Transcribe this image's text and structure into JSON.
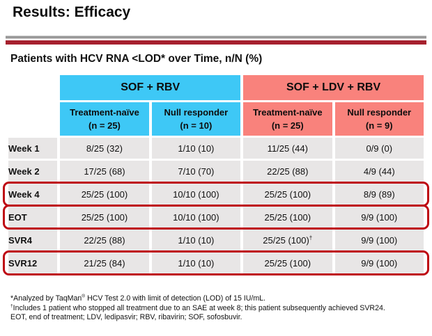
{
  "slide": {
    "title": "Results: Efficacy",
    "subtitle": "Patients with HCV RNA <LOD* over Time, n/N (%)"
  },
  "table": {
    "group_headers": [
      {
        "label": "SOF + RBV"
      },
      {
        "label": "SOF + LDV + RBV"
      }
    ],
    "column_headers": [
      {
        "line1": "Treatment-naïve",
        "line2": "(n = 25)"
      },
      {
        "line1": "Null responder",
        "line2": "(n = 10)"
      },
      {
        "line1": "Treatment-naïve",
        "line2": "(n = 25)"
      },
      {
        "line1": "Null responder",
        "line2": "(n = 9)"
      }
    ],
    "rows": [
      {
        "label": "Week 1",
        "values": [
          "8/25 (32)",
          "1/10 (10)",
          "11/25 (44)",
          "0/9 (0)"
        ],
        "highlighted": false
      },
      {
        "label": "Week 2",
        "values": [
          "17/25 (68)",
          "7/10 (70)",
          "22/25 (88)",
          "4/9 (44)"
        ],
        "highlighted": false
      },
      {
        "label": "Week 4",
        "values": [
          "25/25 (100)",
          "10/10 (100)",
          "25/25 (100)",
          "8/9 (89)"
        ],
        "highlighted": true
      },
      {
        "label": "EOT",
        "values": [
          "25/25 (100)",
          "10/10 (100)",
          "25/25 (100)",
          "9/9 (100)"
        ],
        "highlighted": true
      },
      {
        "label": "SVR4",
        "values": [
          "22/25 (88)",
          "1/10 (10)",
          "25/25 (100)†",
          "9/9 (100)"
        ],
        "highlighted": false
      },
      {
        "label": "SVR12",
        "values": [
          "21/25 (84)",
          "1/10 (10)",
          "25/25 (100)",
          "9/9 (100)"
        ],
        "highlighted": true
      }
    ]
  },
  "footnotes": [
    "*Analyzed by TaqMan® HCV Test 2.0 with limit of detection (LOD) of 15 IU/mL.",
    "†Includes 1 patient who stopped all treatment due to an SAE at week 8; this patient subsequently achieved SVR24.",
    "EOT, end of treatment; LDV, ledipasvir; RBV, ribavirin; SOF, sofosbuvir."
  ],
  "colors": {
    "accent_bar_red": "#A6202E",
    "highlight_red": "#BE0A14",
    "group_blue": "#3EC8F6",
    "group_pink": "#F9827C",
    "row_bg": "#E8E6E6"
  }
}
